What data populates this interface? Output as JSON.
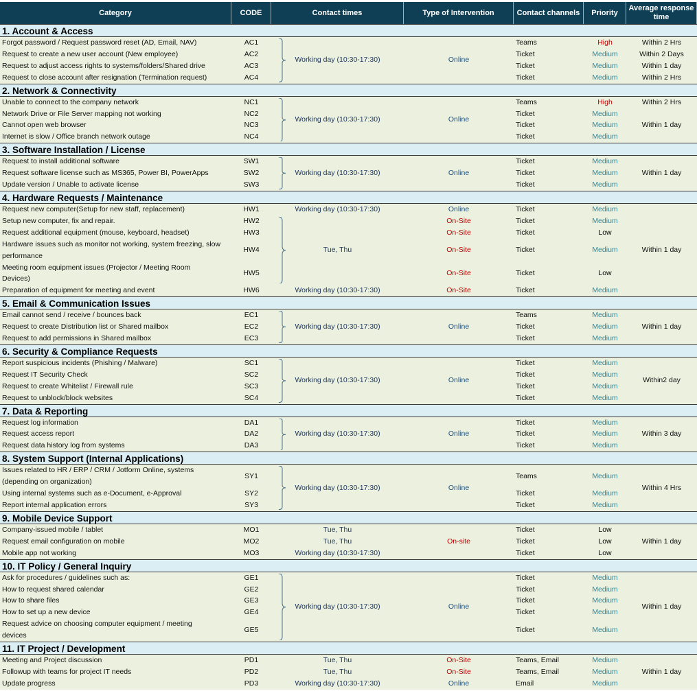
{
  "columns": [
    "Category",
    "CODE",
    "Contact times",
    "Type of Intervention",
    "Contact channels",
    "Priority",
    "Average response time"
  ],
  "colors": {
    "High": "#c00000",
    "Medium": "#31869b",
    "Low": "#000000",
    "Online": "#1f4e79",
    "On-Site": "#c00000",
    "On-site": "#c00000"
  },
  "sections": [
    {
      "title": "1. Account & Access",
      "items": [
        {
          "category": "Forgot password / Request password reset (AD, Email, NAV)",
          "code": "AC1",
          "contact_time": "Working day (10:30-17:30)",
          "intervention": "Online",
          "channel": "Teams",
          "priority": "High",
          "response": "Within 2 Hrs"
        },
        {
          "category": "Request to create a new user account (New employee)",
          "code": "AC2",
          "contact_time": null,
          "intervention": null,
          "channel": "Ticket",
          "priority": "Medium",
          "response": "Within 2 Days"
        },
        {
          "category": "Request to adjust access rights to systems/folders/Shared drive",
          "code": "AC3",
          "contact_time": null,
          "intervention": null,
          "channel": "Ticket",
          "priority": "Medium",
          "response": "Within 1 day"
        },
        {
          "category": "Request to close account after resignation (Termination request)",
          "code": "AC4",
          "contact_time": null,
          "intervention": null,
          "channel": "Ticket",
          "priority": "Medium",
          "response": "Within 2 Hrs"
        }
      ]
    },
    {
      "title": "2. Network & Connectivity",
      "items": [
        {
          "category": "Unable to connect to the company network",
          "code": "NC1",
          "contact_time": "Working day (10:30-17:30)",
          "intervention": "Online",
          "channel": "Teams",
          "priority": "High",
          "response": "Within 2 Hrs"
        },
        {
          "category": "Network Drive or File Server mapping not working",
          "code": "NC2",
          "contact_time": null,
          "intervention": null,
          "channel": "Ticket",
          "priority": "Medium",
          "response": "Within 1 day"
        },
        {
          "category": "Cannot open web browser",
          "code": "NC3",
          "contact_time": null,
          "intervention": null,
          "channel": "Ticket",
          "priority": "Medium",
          "response": null
        },
        {
          "category": "Internet is slow / Office branch network outage",
          "code": "NC4",
          "contact_time": null,
          "intervention": null,
          "channel": "Ticket",
          "priority": "Medium",
          "response": null
        }
      ]
    },
    {
      "title": "3. Software Installation / License",
      "items": [
        {
          "category": "Request to install additional software",
          "code": "SW1",
          "contact_time": "Working day (10:30-17:30)",
          "intervention": "Online",
          "channel": "Ticket",
          "priority": "Medium",
          "response": "Within 1 day"
        },
        {
          "category": "Request software license such as MS365, Power BI, PowerApps",
          "code": "SW2",
          "contact_time": null,
          "intervention": null,
          "channel": "Ticket",
          "priority": "Medium",
          "response": null
        },
        {
          "category": "Update version / Unable to activate license",
          "code": "SW3",
          "contact_time": null,
          "intervention": null,
          "channel": "Ticket",
          "priority": "Medium",
          "response": null
        }
      ]
    },
    {
      "title": "4. Hardware Requests / Maintenance",
      "items": [
        {
          "category": "Request new computer(Setup for new staff, replacement)",
          "code": "HW1",
          "contact_time": "Working day (10:30-17:30)",
          "intervention": "Online",
          "channel": "Ticket",
          "priority": "Medium",
          "response": "Within 1 day"
        },
        {
          "category": "Setup new computer, fix and repair.",
          "code": "HW2",
          "contact_time": "Tue, Thu",
          "intervention": "On-Site",
          "channel": "Ticket",
          "priority": "Medium",
          "response": null
        },
        {
          "category": "Request additional equipment (mouse, keyboard, headset)",
          "code": "HW3",
          "contact_time": null,
          "intervention": "On-Site",
          "channel": "Ticket",
          "priority": "Low",
          "response": null
        },
        {
          "category": "Hardware issues such as monitor not working, system freezing, slow\nperformance",
          "code": "HW4",
          "contact_time": null,
          "intervention": "On-Site",
          "channel": "Ticket",
          "priority": "Medium",
          "response": null
        },
        {
          "category": "Meeting room equipment issues (Projector / Meeting Room\nDevices)",
          "code": "HW5",
          "contact_time": null,
          "intervention": "On-Site",
          "channel": "Ticket",
          "priority": "Low",
          "response": null
        },
        {
          "category": "Preparation of equipment for meeting and event",
          "code": "HW6",
          "contact_time": "Working day (10:30-17:30)",
          "intervention": "On-Site",
          "channel": "Ticket",
          "priority": "Medium",
          "response": null
        }
      ]
    },
    {
      "title": "5. Email & Communication Issues",
      "items": [
        {
          "category": "Email cannot send / receive / bounces back",
          "code": "EC1",
          "contact_time": "Working day (10:30-17:30)",
          "intervention": "Online",
          "channel": "Teams",
          "priority": "Medium",
          "response": "Within 1 day"
        },
        {
          "category": "Request to create Distribution list or Shared mailbox",
          "code": "EC2",
          "contact_time": null,
          "intervention": null,
          "channel": "Ticket",
          "priority": "Medium",
          "response": null
        },
        {
          "category": "Request to add permissions in Shared mailbox",
          "code": "EC3",
          "contact_time": null,
          "intervention": null,
          "channel": "Ticket",
          "priority": "Medium",
          "response": null
        }
      ]
    },
    {
      "title": "6. Security & Compliance Requests",
      "items": [
        {
          "category": "Report suspicious incidents (Phishing / Malware)",
          "code": "SC1",
          "contact_time": "Working day (10:30-17:30)",
          "intervention": "Online",
          "channel": "Ticket",
          "priority": "Medium",
          "response": "Within2 day"
        },
        {
          "category": "Request IT Security Check",
          "code": "SC2",
          "contact_time": null,
          "intervention": null,
          "channel": "Ticket",
          "priority": "Medium",
          "response": null
        },
        {
          "category": "Request to create Whitelist / Firewall rule",
          "code": "SC3",
          "contact_time": null,
          "intervention": null,
          "channel": "Ticket",
          "priority": "Medium",
          "response": null
        },
        {
          "category": "Request to unblock/block websites",
          "code": "SC4",
          "contact_time": null,
          "intervention": null,
          "channel": "Ticket",
          "priority": "Medium",
          "response": null
        }
      ]
    },
    {
      "title": "7. Data & Reporting",
      "items": [
        {
          "category": "Request log information",
          "code": "DA1",
          "contact_time": "Working day (10:30-17:30)",
          "intervention": "Online",
          "channel": "Ticket",
          "priority": "Medium",
          "response": "Within 3 day"
        },
        {
          "category": "Request access report",
          "code": "DA2",
          "contact_time": null,
          "intervention": null,
          "channel": "Ticket",
          "priority": "Medium",
          "response": null
        },
        {
          "category": "Request data history log from systems",
          "code": "DA3",
          "contact_time": null,
          "intervention": null,
          "channel": "Ticket",
          "priority": "Medium",
          "response": null
        }
      ]
    },
    {
      "title": "8. System Support (Internal Applications)",
      "items": [
        {
          "category": "Issues related to HR / ERP / CRM / Jotform Online, systems\n(depending on organization)",
          "code": "SY1",
          "contact_time": "Working day (10:30-17:30)",
          "intervention": "Online",
          "channel": "Teams",
          "priority": "Medium",
          "response": "Within 4 Hrs"
        },
        {
          "category": "Using internal systems such as e-Document, e-Approval",
          "code": "SY2",
          "contact_time": null,
          "intervention": null,
          "channel": "Ticket",
          "priority": "Medium",
          "response": null
        },
        {
          "category": "Report internal application errors",
          "code": "SY3",
          "contact_time": null,
          "intervention": null,
          "channel": "Ticket",
          "priority": "Medium",
          "response": null
        }
      ]
    },
    {
      "title": "9. Mobile Device Support",
      "items": [
        {
          "category": "Company-issued mobile / tablet",
          "code": "MO1",
          "contact_time": "Tue, Thu",
          "intervention": "On-site",
          "channel": "Ticket",
          "priority": "Low",
          "response": "Within 1 day"
        },
        {
          "category": "Request email configuration on mobile",
          "code": "MO2",
          "contact_time": "Tue, Thu",
          "intervention": null,
          "channel": "Ticket",
          "priority": "Low",
          "response": null
        },
        {
          "category": "Mobile app not working",
          "code": "MO3",
          "contact_time": "Working day (10:30-17:30)",
          "intervention": null,
          "channel": "Ticket",
          "priority": "Low",
          "response": null
        }
      ]
    },
    {
      "title": "10. IT Policy / General Inquiry",
      "items": [
        {
          "category": "Ask for procedures / guidelines such as:",
          "code": "GE1",
          "contact_time": "Working day (10:30-17:30)",
          "intervention": "Online",
          "channel": "Ticket",
          "priority": "Medium",
          "response": "Within 1 day"
        },
        {
          "category": "How to request shared calendar",
          "code": "GE2",
          "contact_time": null,
          "intervention": null,
          "channel": "Ticket",
          "priority": "Medium",
          "response": null
        },
        {
          "category": "How to share files",
          "code": "GE3",
          "contact_time": null,
          "intervention": null,
          "channel": "Ticket",
          "priority": "Medium",
          "response": null
        },
        {
          "category": "How to set up a new device",
          "code": "GE4",
          "contact_time": null,
          "intervention": null,
          "channel": "Ticket",
          "priority": "Medium",
          "response": null
        },
        {
          "category": "Request advice on choosing computer equipment / meeting\ndevices",
          "code": "GE5",
          "contact_time": null,
          "intervention": null,
          "channel": "Ticket",
          "priority": "Medium",
          "response": null
        }
      ]
    },
    {
      "title": "11. IT Project / Development",
      "items": [
        {
          "category": "Meeting and Project discussion",
          "code": "PD1",
          "contact_time": "Tue, Thu",
          "intervention": "On-Site",
          "channel": "Teams, Email",
          "priority": "Medium",
          "response": "Within 1 day"
        },
        {
          "category": "Followup with teams for project IT needs",
          "code": "PD2",
          "contact_time": "Tue, Thu",
          "intervention": "On-Site",
          "channel": "Teams, Email",
          "priority": "Medium",
          "response": null
        },
        {
          "category": "Update progress",
          "code": "PD3",
          "contact_time": "Working day (10:30-17:30)",
          "intervention": "Online",
          "channel": "Email",
          "priority": "Medium",
          "response": null
        }
      ]
    }
  ]
}
